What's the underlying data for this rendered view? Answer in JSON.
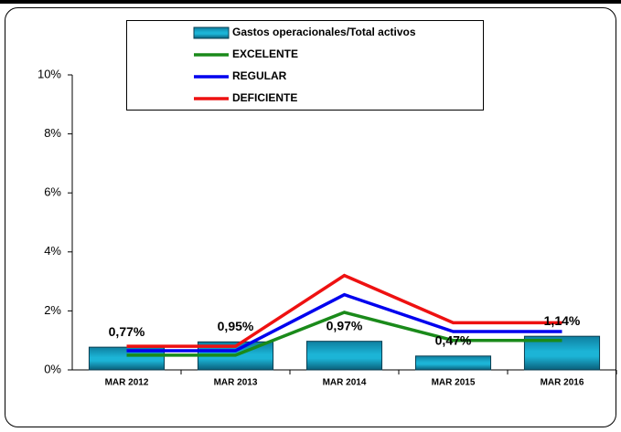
{
  "chart_data": {
    "type": "bar",
    "categories": [
      "MAR 2012",
      "MAR 2013",
      "MAR 2014",
      "MAR 2015",
      "MAR 2016"
    ],
    "series": [
      {
        "name": "Gastos operacionales/Total activos",
        "type": "bar",
        "color": "#1cb4d6",
        "values": [
          0.77,
          0.95,
          0.97,
          0.47,
          1.14
        ],
        "value_labels": [
          "0,77%",
          "0,95%",
          "0,97%",
          "0,47%",
          "1,14%"
        ]
      },
      {
        "name": "EXCELENTE",
        "type": "line",
        "color": "#1a8a1a",
        "values": [
          0.5,
          0.5,
          1.95,
          1.0,
          1.0
        ]
      },
      {
        "name": "REGULAR",
        "type": "line",
        "color": "#0000ee",
        "values": [
          0.65,
          0.65,
          2.55,
          1.3,
          1.3
        ]
      },
      {
        "name": "DEFICIENTE",
        "type": "line",
        "color": "#ee1111",
        "values": [
          0.8,
          0.8,
          3.2,
          1.6,
          1.6
        ]
      }
    ],
    "ylim": [
      0,
      10
    ],
    "yticks": [
      {
        "value": 0,
        "label": "0%"
      },
      {
        "value": 2,
        "label": "2%"
      },
      {
        "value": 4,
        "label": "4%"
      },
      {
        "value": 6,
        "label": "6%"
      },
      {
        "value": 8,
        "label": "8%"
      },
      {
        "value": 10,
        "label": "10%"
      }
    ],
    "legend": "top"
  }
}
